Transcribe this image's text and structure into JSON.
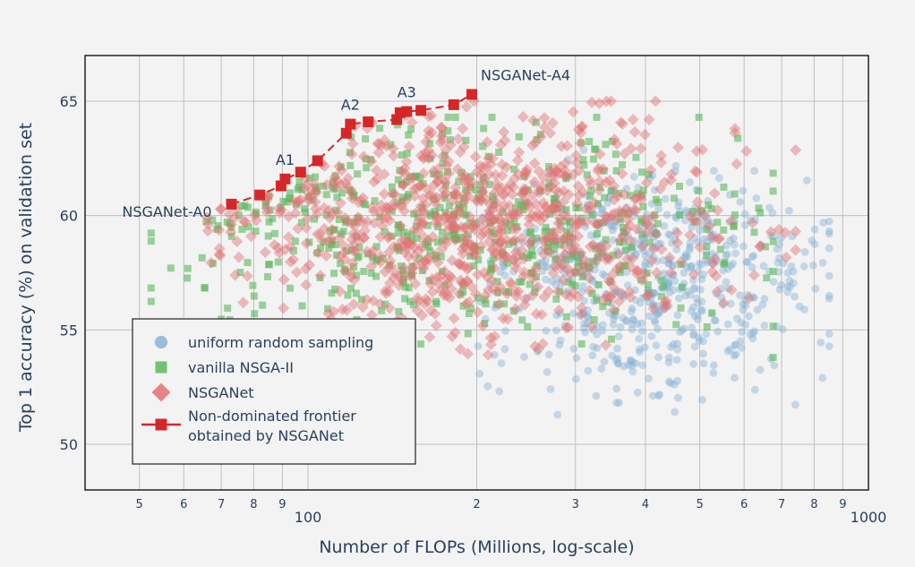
{
  "colors": {
    "random": "#8ab4d4",
    "nsga2": "#5cb85c",
    "nsganet": "#e07070",
    "frontier": "#d62728",
    "grid": "#c0c0c0",
    "text": "#2a3f5f"
  },
  "chart_data": {
    "type": "scatter",
    "title": "",
    "xlabel": "Number of FLOPs (Millions, log-scale)",
    "ylabel": "Top 1 accuracy (%) on validation set",
    "x_scale": "log",
    "xlim": [
      40,
      1000
    ],
    "ylim": [
      48,
      67
    ],
    "grid": true,
    "legend_position": "bottom-left",
    "x_minor_tick_labels": [
      {
        "v": 50,
        "t": "5"
      },
      {
        "v": 60,
        "t": "6"
      },
      {
        "v": 70,
        "t": "7"
      },
      {
        "v": 80,
        "t": "8"
      },
      {
        "v": 90,
        "t": "9"
      },
      {
        "v": 200,
        "t": "2"
      },
      {
        "v": 300,
        "t": "3"
      },
      {
        "v": 400,
        "t": "4"
      },
      {
        "v": 500,
        "t": "5"
      },
      {
        "v": 600,
        "t": "6"
      },
      {
        "v": 700,
        "t": "7"
      },
      {
        "v": 800,
        "t": "8"
      },
      {
        "v": 900,
        "t": "9"
      }
    ],
    "x_major_tick_labels": [
      {
        "v": 100,
        "t": "100"
      },
      {
        "v": 1000,
        "t": "1000"
      }
    ],
    "y_ticks": [
      {
        "v": 50,
        "t": "50"
      },
      {
        "v": 55,
        "t": "55"
      },
      {
        "v": 60,
        "t": "60"
      },
      {
        "v": 65,
        "t": "65"
      }
    ],
    "series": [
      {
        "name": "uniform random sampling",
        "marker": "circle",
        "count": 600,
        "x_log_range": [
          2.15,
          2.93
        ],
        "x_center": 2.62,
        "x_spread": 0.14,
        "y_center": 57.3,
        "y_spread": 2.3,
        "y_range": [
          48.2,
          63.5
        ]
      },
      {
        "name": "vanilla NSGA-II",
        "marker": "square",
        "count": 550,
        "x_log_range": [
          1.72,
          2.83
        ],
        "x_center": 2.28,
        "x_spread": 0.26,
        "y_center": 59.6,
        "y_spread": 2.2,
        "y_range": [
          49.0,
          64.3
        ]
      },
      {
        "name": "NSGANet",
        "marker": "diamond",
        "count": 900,
        "x_log_range": [
          1.82,
          2.87
        ],
        "x_center": 2.32,
        "x_spread": 0.21,
        "y_center": 59.8,
        "y_spread": 2.4,
        "y_range": [
          49.3,
          65.0
        ]
      },
      {
        "name": "Non-dominated frontier obtained by NSGANet",
        "marker": "square-line",
        "x": [
          73,
          82,
          89.5,
          91,
          97,
          104,
          117,
          119,
          128,
          144,
          146,
          150,
          159,
          182,
          196
        ],
        "y": [
          60.5,
          60.9,
          61.3,
          61.6,
          61.9,
          62.4,
          63.6,
          64.0,
          64.1,
          64.2,
          64.5,
          64.55,
          64.6,
          64.85,
          65.3
        ]
      }
    ],
    "annotations": [
      {
        "text": "NSGANet-A0",
        "x": 73,
        "y": 60.5,
        "anchor": "end",
        "dx": -22,
        "dy": 14
      },
      {
        "text": "A1",
        "x": 91,
        "y": 61.6,
        "anchor": "middle",
        "dx": 0,
        "dy": -16
      },
      {
        "text": "A2",
        "x": 119,
        "y": 64.0,
        "anchor": "middle",
        "dx": 0,
        "dy": -16
      },
      {
        "text": "A3",
        "x": 150,
        "y": 64.55,
        "anchor": "middle",
        "dx": 0,
        "dy": -16
      },
      {
        "text": "NSGANet-A4",
        "x": 196,
        "y": 65.3,
        "anchor": "start",
        "dx": 10,
        "dy": -16
      }
    ],
    "legend": {
      "items": [
        {
          "label_lines": [
            "uniform random sampling"
          ],
          "marker": "circle",
          "color_key": "random"
        },
        {
          "label_lines": [
            "vanilla NSGA-II"
          ],
          "marker": "square",
          "color_key": "nsga2"
        },
        {
          "label_lines": [
            "NSGANet"
          ],
          "marker": "diamond",
          "color_key": "nsganet"
        },
        {
          "label_lines": [
            "Non-dominated frontier",
            "obtained by NSGANet"
          ],
          "marker": "square-line",
          "color_key": "frontier"
        }
      ]
    }
  }
}
